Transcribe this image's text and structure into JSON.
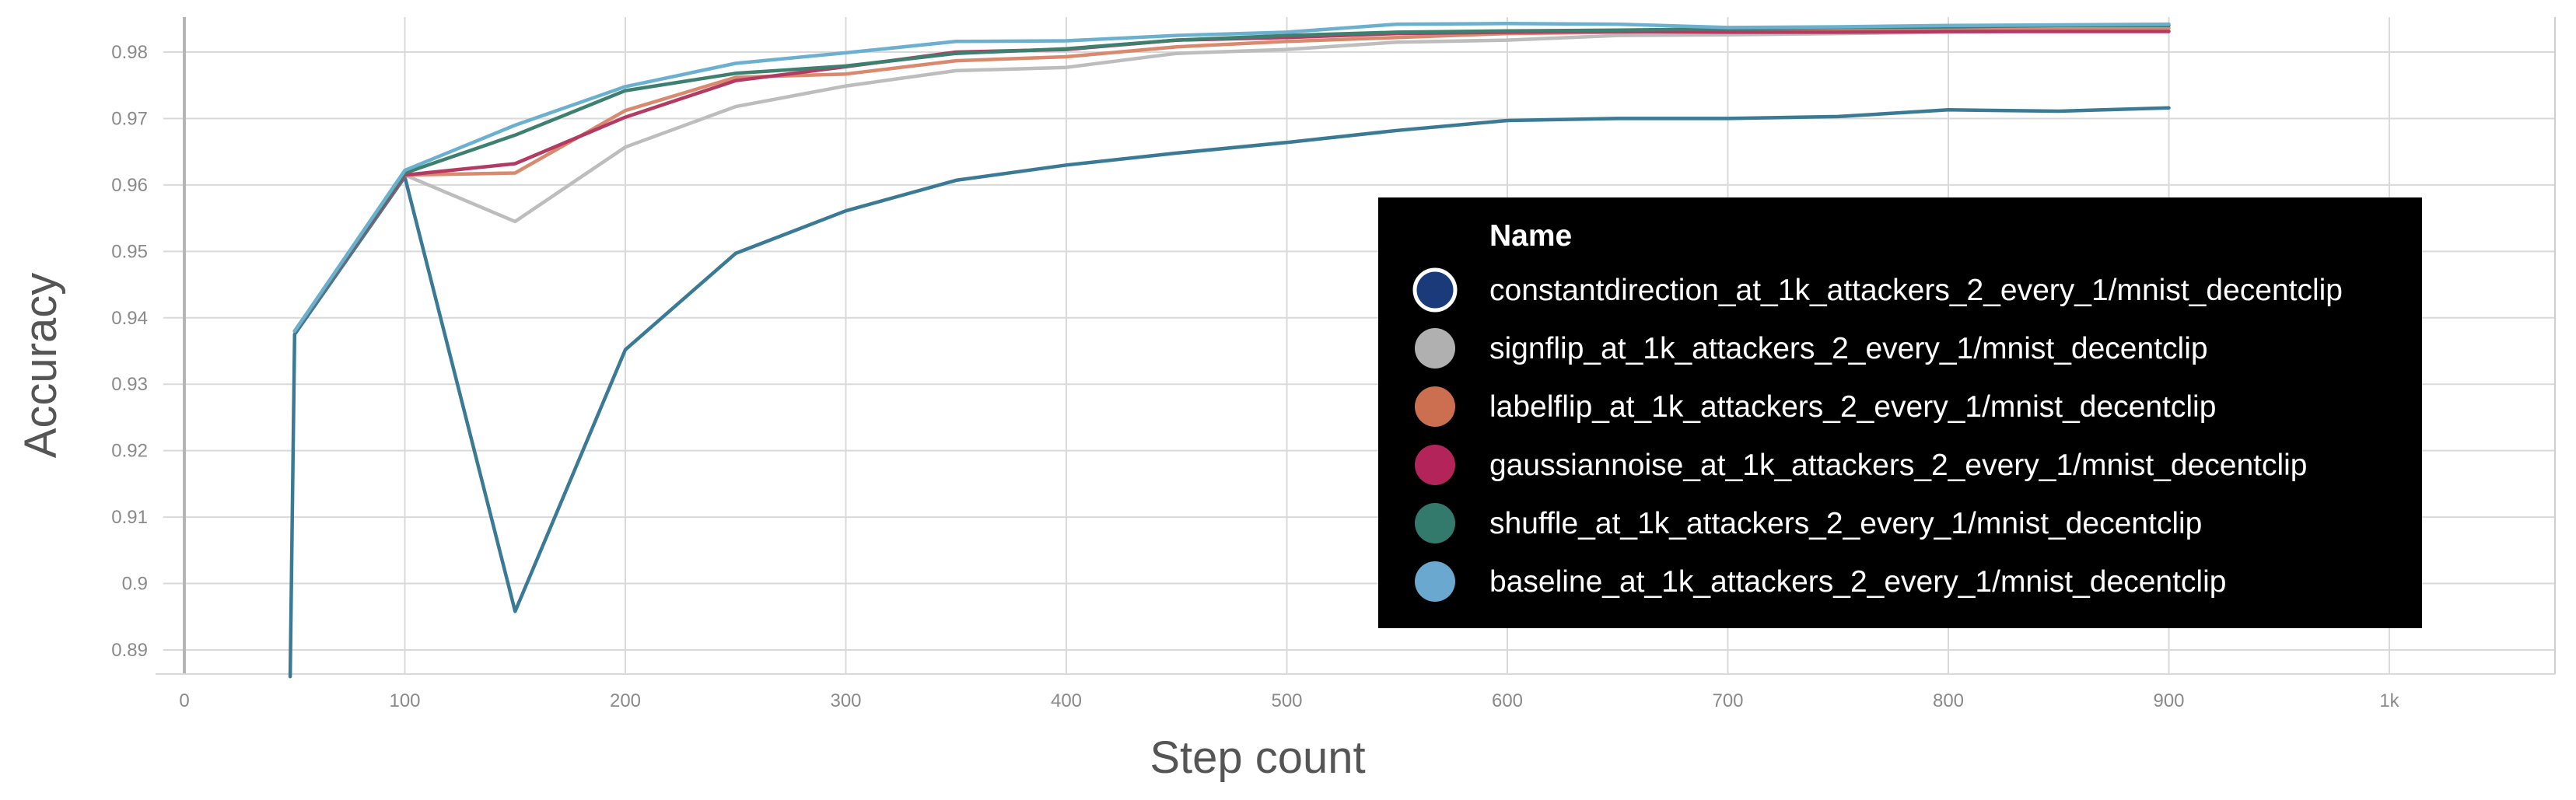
{
  "chart_data": {
    "type": "line",
    "xlabel": "Step count",
    "ylabel": "Accuracy",
    "xlim": [
      0,
      1080
    ],
    "ylim": [
      0.886,
      0.985
    ],
    "x_ticks": [
      {
        "value": 0,
        "label": "0"
      },
      {
        "value": 100,
        "label": "100"
      },
      {
        "value": 200,
        "label": "200"
      },
      {
        "value": 300,
        "label": "300"
      },
      {
        "value": 400,
        "label": "400"
      },
      {
        "value": 500,
        "label": "500"
      },
      {
        "value": 600,
        "label": "600"
      },
      {
        "value": 700,
        "label": "700"
      },
      {
        "value": 800,
        "label": "800"
      },
      {
        "value": 900,
        "label": "900"
      },
      {
        "value": 1000,
        "label": "1k"
      }
    ],
    "y_ticks": [
      {
        "value": 0.89,
        "label": "0.89"
      },
      {
        "value": 0.9,
        "label": "0.9"
      },
      {
        "value": 0.91,
        "label": "0.91"
      },
      {
        "value": 0.92,
        "label": "0.92"
      },
      {
        "value": 0.93,
        "label": "0.93"
      },
      {
        "value": 0.94,
        "label": "0.94"
      },
      {
        "value": 0.95,
        "label": "0.95"
      },
      {
        "value": 0.96,
        "label": "0.96"
      },
      {
        "value": 0.97,
        "label": "0.97"
      },
      {
        "value": 0.98,
        "label": "0.98"
      }
    ],
    "grid": true,
    "legend": {
      "title": "Name",
      "placement": "right"
    },
    "series": [
      {
        "name": "constantdirection_at_1k_attackers_2_every_1/mnist_decentclip",
        "color": "#3a7a94",
        "legend_color": "#1a3a7a",
        "x": [
          48,
          50,
          100,
          150,
          200,
          250,
          300,
          350,
          400,
          450,
          500,
          550,
          600,
          650,
          700,
          750,
          800,
          850,
          900
        ],
        "y": [
          0.886,
          0.9375,
          0.9612,
          0.8958,
          0.9352,
          0.9497,
          0.9561,
          0.9607,
          0.963,
          0.9648,
          0.9664,
          0.9682,
          0.9697,
          0.97,
          0.97,
          0.9703,
          0.9713,
          0.9711,
          0.9716
        ]
      },
      {
        "name": "signflip_at_1k_attackers_2_every_1/mnist_decentclip",
        "color": "#bdbdbd",
        "legend_color": "#b0b0b0",
        "x": [
          50,
          100,
          150,
          200,
          250,
          300,
          350,
          400,
          450,
          500,
          550,
          600,
          650,
          700,
          750,
          800,
          850,
          900
        ],
        "y": [
          0.938,
          0.9615,
          0.9545,
          0.9657,
          0.9718,
          0.9749,
          0.9772,
          0.9777,
          0.9798,
          0.9804,
          0.9815,
          0.9818,
          0.9825,
          0.9826,
          0.9828,
          0.983,
          0.9832,
          0.9832
        ]
      },
      {
        "name": "labelflip_at_1k_attackers_2_every_1/mnist_decentclip",
        "color": "#d98a6e",
        "legend_color": "#cc6f50",
        "x": [
          50,
          100,
          150,
          200,
          250,
          300,
          350,
          400,
          450,
          500,
          550,
          600,
          650,
          700,
          750,
          800,
          850,
          900
        ],
        "y": [
          0.938,
          0.9615,
          0.9618,
          0.9712,
          0.9762,
          0.9767,
          0.9787,
          0.9793,
          0.9808,
          0.9816,
          0.9822,
          0.9828,
          0.983,
          0.9832,
          0.9833,
          0.9835,
          0.9836,
          0.9836
        ]
      },
      {
        "name": "gaussiannoise_at_1k_attackers_2_every_1/mnist_decentclip",
        "color": "#b33a63",
        "legend_color": "#b3245a",
        "x": [
          50,
          100,
          150,
          200,
          250,
          300,
          350,
          400,
          450,
          500,
          550,
          600,
          650,
          700,
          750,
          800,
          850,
          900
        ],
        "y": [
          0.938,
          0.9615,
          0.9632,
          0.9702,
          0.9757,
          0.9778,
          0.98,
          0.9804,
          0.9818,
          0.9822,
          0.9828,
          0.983,
          0.9831,
          0.983,
          0.983,
          0.9831,
          0.9831,
          0.9831
        ]
      },
      {
        "name": "shuffle_at_1k_attackers_2_every_1/mnist_decentclip",
        "color": "#3d8070",
        "legend_color": "#347a6c",
        "x": [
          50,
          100,
          150,
          200,
          250,
          300,
          350,
          400,
          450,
          500,
          550,
          600,
          650,
          700,
          750,
          800,
          850,
          900
        ],
        "y": [
          0.938,
          0.9618,
          0.9675,
          0.9742,
          0.9768,
          0.9779,
          0.9798,
          0.9805,
          0.9818,
          0.9825,
          0.983,
          0.9832,
          0.9833,
          0.9835,
          0.9837,
          0.9838,
          0.984,
          0.984
        ]
      },
      {
        "name": "baseline_at_1k_attackers_2_every_1/mnist_decentclip",
        "color": "#6cb0cf",
        "legend_color": "#6aa8cf",
        "x": [
          50,
          100,
          150,
          200,
          250,
          300,
          350,
          400,
          450,
          500,
          550,
          600,
          650,
          700,
          750,
          800,
          850,
          900
        ],
        "y": [
          0.938,
          0.9622,
          0.969,
          0.9748,
          0.9783,
          0.9799,
          0.9816,
          0.9817,
          0.9825,
          0.983,
          0.9842,
          0.9843,
          0.9842,
          0.9837,
          0.9838,
          0.984,
          0.9841,
          0.9842
        ]
      }
    ]
  }
}
